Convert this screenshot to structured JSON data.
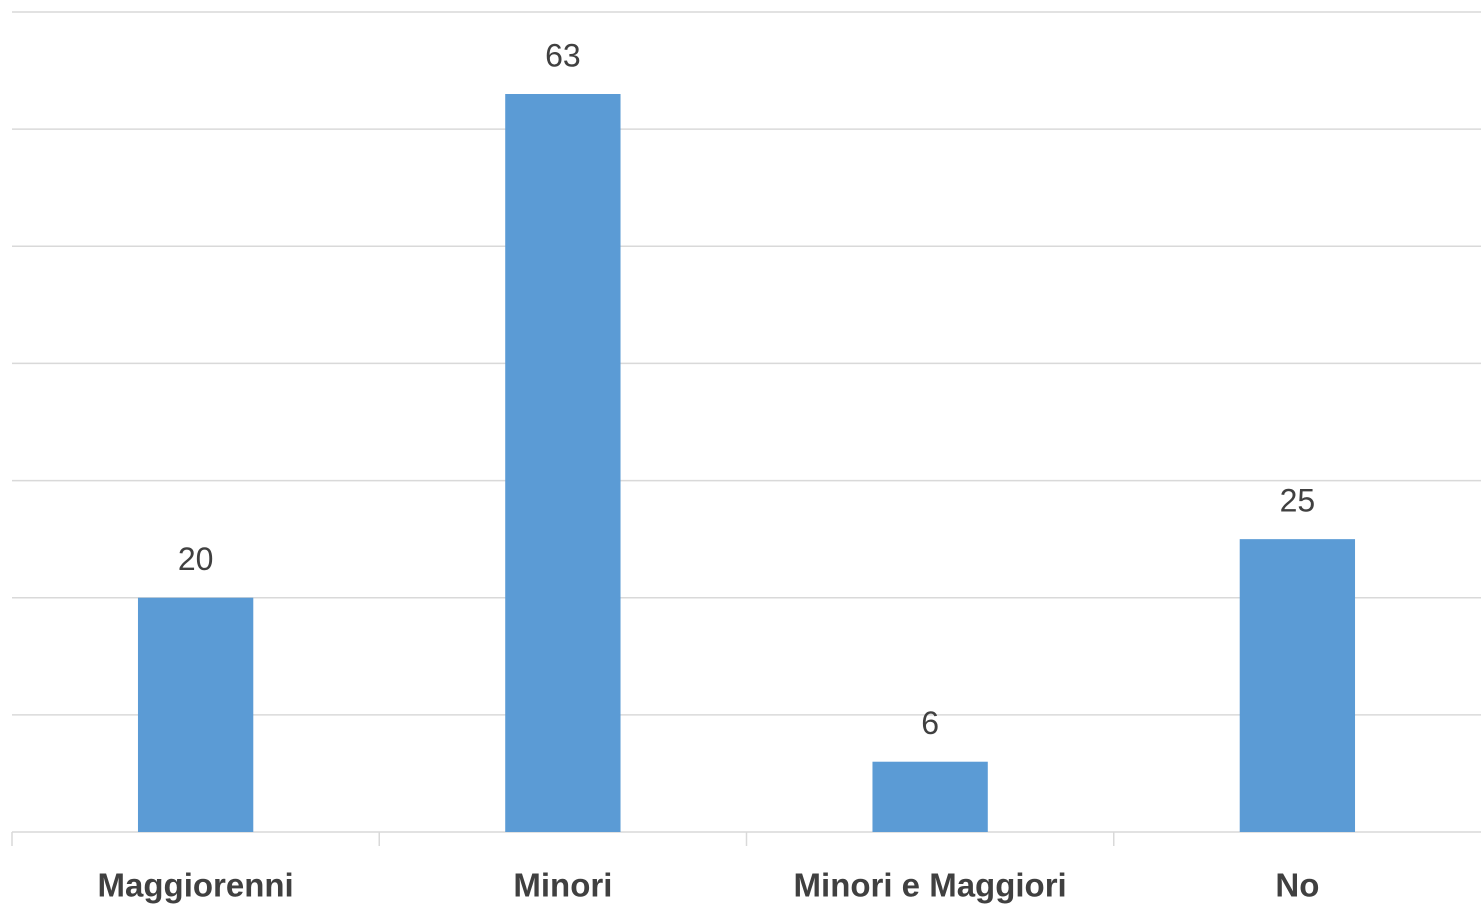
{
  "chart_data": {
    "type": "bar",
    "categories": [
      "Maggiorenni",
      "Minori",
      "Minori e Maggiori",
      "No"
    ],
    "values": [
      20,
      63,
      6,
      25
    ],
    "color": "#5b9bd5",
    "ylim": [
      0,
      70
    ],
    "yticks": [
      0,
      10,
      20,
      30,
      40,
      50,
      60,
      70
    ],
    "grid": true
  }
}
